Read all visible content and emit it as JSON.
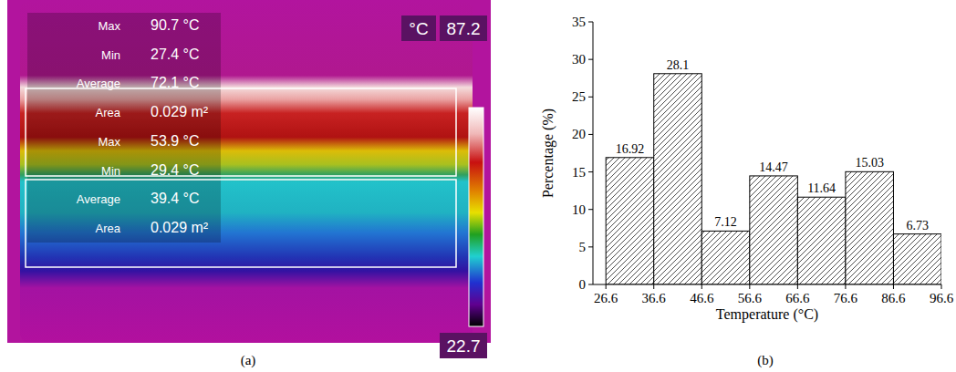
{
  "thermal_image": {
    "panel_label": "(a)",
    "unit": "°C",
    "colorbar": {
      "range": [
        22.7,
        87.2
      ]
    },
    "regions": [
      {
        "stats": [
          {
            "name": "Max",
            "text": "90.7 °C"
          },
          {
            "name": "Min",
            "text": "27.4 °C"
          },
          {
            "name": "Average",
            "text": "72.1 °C"
          },
          {
            "name": "Area",
            "text": "0.029 m²"
          }
        ]
      },
      {
        "stats": [
          {
            "name": "Max",
            "text": "53.9 °C"
          },
          {
            "name": "Min",
            "text": "29.4 °C"
          },
          {
            "name": "Average",
            "text": "39.4 °C"
          },
          {
            "name": "Area",
            "text": "0.029 m²"
          }
        ]
      }
    ]
  },
  "chart_data": {
    "type": "histogram",
    "panel_label": "(b)",
    "x_label": "Temperature (°C)",
    "y_label": "Percentage (%)",
    "bins": [
      26.6,
      36.6,
      46.6,
      56.6,
      66.6,
      76.6,
      86.6,
      96.6
    ],
    "values": [
      16.92,
      28.1,
      7.12,
      14.47,
      11.64,
      15.03,
      6.73
    ],
    "color": "#000000",
    "xlim": [
      23.9,
      96.6
    ],
    "ylim": [
      0,
      35
    ],
    "xticks": [
      26.6,
      36.6,
      46.6,
      56.6,
      66.6,
      76.6,
      86.6,
      96.6
    ],
    "yticks": [
      0,
      5,
      10,
      15,
      20,
      25,
      30,
      35
    ],
    "data_labels": true,
    "grid": false
  }
}
